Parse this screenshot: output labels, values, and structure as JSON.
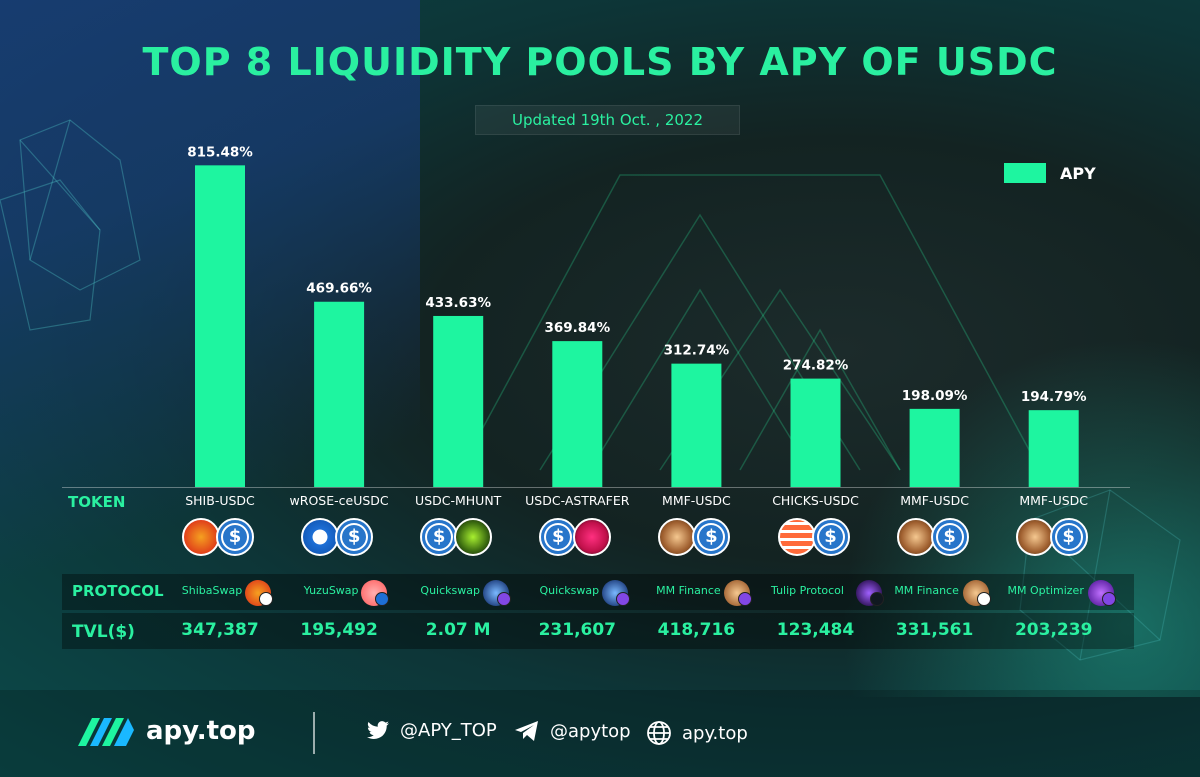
{
  "header": {
    "title": "TOP 8 LIQUIDITY POOLS BY APY OF USDC",
    "subtitle": "Updated 19th Oct. , 2022"
  },
  "legend": {
    "label": "APY"
  },
  "row_labels": {
    "token": "TOKEN",
    "protocol": "PROTOCOL",
    "tvl": "TVL($)"
  },
  "colors": {
    "bar": "#1ef5a0",
    "accent": "#2af0a0",
    "usdc": "#2775ca"
  },
  "chart_data": {
    "type": "bar",
    "categories": [
      "SHIB-USDC",
      "wROSE-ceUSDC",
      "USDC-MHUNT",
      "USDC-ASTRAFER",
      "MMF-USDC",
      "CHICKS-USDC",
      "MMF-USDC",
      "MMF-USDC"
    ],
    "series": [
      {
        "name": "APY",
        "values": [
          815.48,
          469.66,
          433.63,
          369.84,
          312.74,
          274.82,
          198.09,
          194.79
        ],
        "labels": [
          "815.48%",
          "469.66%",
          "433.63%",
          "369.84%",
          "312.74%",
          "274.82%",
          "198.09%",
          "194.79%"
        ]
      }
    ],
    "title": "TOP 8 LIQUIDITY POOLS BY APY OF USDC",
    "xlabel": "TOKEN",
    "ylabel": "",
    "ylim": [
      0,
      900
    ],
    "grid": false,
    "legend": "top-right"
  },
  "pools": [
    {
      "token": "SHIB-USDC",
      "protocol": "ShibaSwap",
      "tvl": "347,387",
      "token_icon": "shib-icon",
      "protocol_icon": "shibaswap-icon",
      "chain_icon": "ethereum-icon"
    },
    {
      "token": "wROSE-ceUSDC",
      "protocol": "YuzuSwap",
      "tvl": "195,492",
      "token_icon": "oasis-rose-icon",
      "protocol_icon": "yuzuswap-icon",
      "chain_icon": "oasis-chain-icon"
    },
    {
      "token": "USDC-MHUNT",
      "protocol": "Quickswap",
      "tvl": "2.07 M",
      "token_icon": "mhunt-icon",
      "protocol_icon": "quickswap-icon",
      "chain_icon": "polygon-icon"
    },
    {
      "token": "USDC-ASTRAFER",
      "protocol": "Quickswap",
      "tvl": "231,607",
      "token_icon": "astrafer-icon",
      "protocol_icon": "quickswap-icon",
      "chain_icon": "polygon-icon"
    },
    {
      "token": "MMF-USDC",
      "protocol": "MM Finance",
      "tvl": "418,716",
      "token_icon": "mmf-icon",
      "protocol_icon": "mm-finance-icon",
      "chain_icon": "polygon-icon"
    },
    {
      "token": "CHICKS-USDC",
      "protocol": "Tulip Protocol",
      "tvl": "123,484",
      "token_icon": "chicks-icon",
      "protocol_icon": "tulip-icon",
      "chain_icon": "solana-icon"
    },
    {
      "token": "MMF-USDC",
      "protocol": "MM Finance",
      "tvl": "331,561",
      "token_icon": "mmf-icon",
      "protocol_icon": "mm-finance-icon",
      "chain_icon": "cronos-icon"
    },
    {
      "token": "MMF-USDC",
      "protocol": "MM Optimizer",
      "tvl": "203,239",
      "token_icon": "mmf-icon",
      "protocol_icon": "mm-optimizer-icon",
      "chain_icon": "polygon-icon"
    }
  ],
  "footer": {
    "brand": "apy.top",
    "twitter": "@APY_TOP",
    "telegram": "@apytop",
    "website": "apy.top"
  }
}
